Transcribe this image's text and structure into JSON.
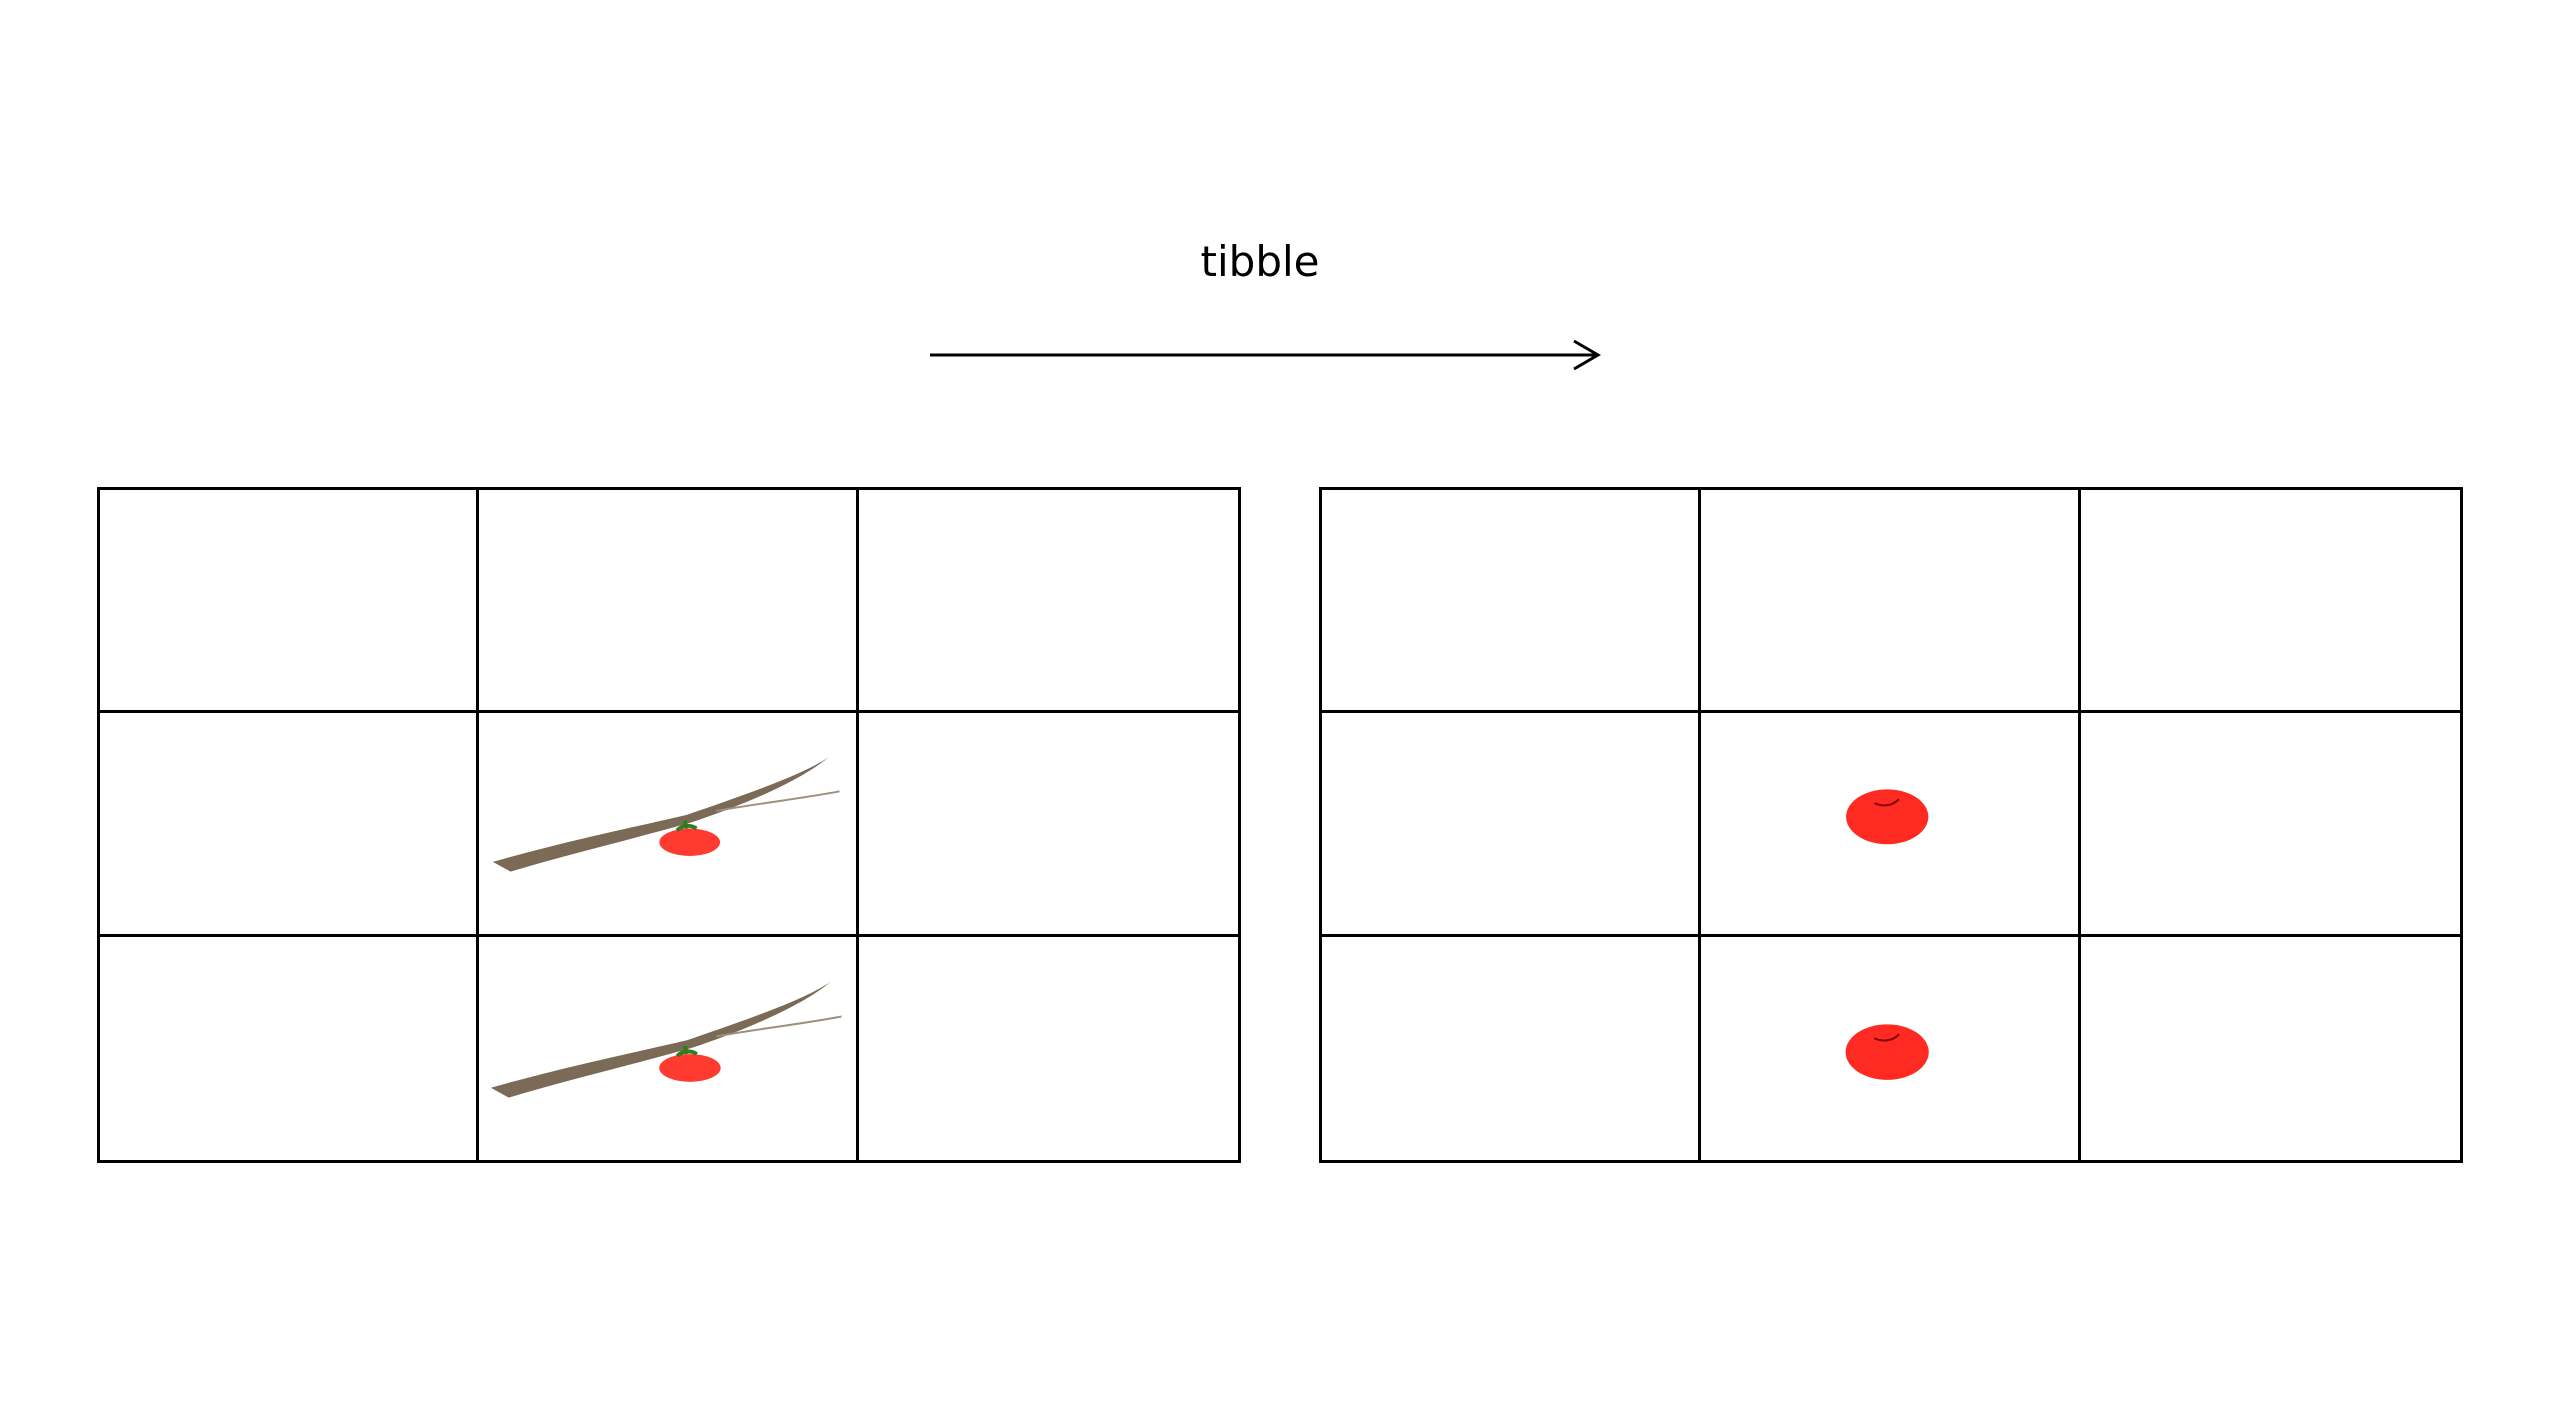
{
  "diagram": {
    "title": "tibble",
    "colors": {
      "grid_line": "#000000",
      "apple": "#ff2a22",
      "branch": "#7b6a55",
      "stem": "#2e7d1e"
    },
    "left_grid": {
      "rows": 3,
      "cols": 3,
      "cells": [
        [
          "",
          "",
          ""
        ],
        [
          "",
          "apple-on-branch",
          ""
        ],
        [
          "",
          "apple-on-branch",
          ""
        ]
      ]
    },
    "right_grid": {
      "rows": 3,
      "cols": 3,
      "cells": [
        [
          "",
          "",
          ""
        ],
        [
          "",
          "apple",
          ""
        ],
        [
          "",
          "apple",
          ""
        ]
      ]
    }
  }
}
